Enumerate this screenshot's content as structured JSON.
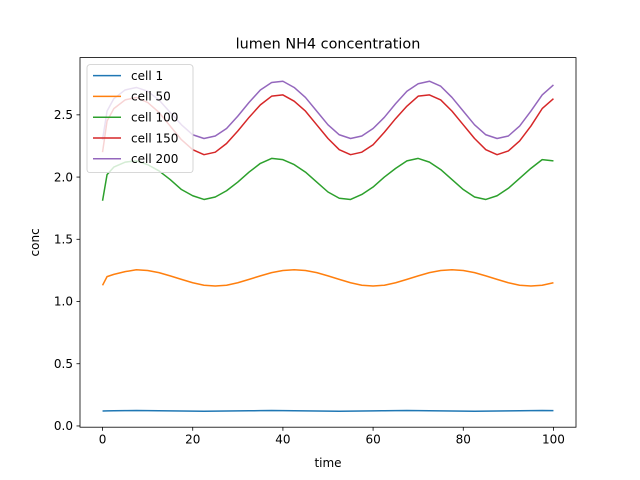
{
  "chart_data": {
    "type": "line",
    "title": "lumen NH4 concentration",
    "xlabel": "time",
    "ylabel": "conc",
    "xlim": [
      -5,
      105
    ],
    "ylim": [
      -0.01,
      2.96
    ],
    "xticks": [
      0,
      20,
      40,
      60,
      80,
      100
    ],
    "yticks": [
      0.0,
      0.5,
      1.0,
      1.5,
      2.0,
      2.5
    ],
    "xtick_labels": [
      "0",
      "20",
      "40",
      "60",
      "80",
      "100"
    ],
    "ytick_labels": [
      "0.0",
      "0.5",
      "1.0",
      "1.5",
      "2.0",
      "2.5"
    ],
    "grid": false,
    "legend_position": "top-left",
    "x": [
      0,
      1,
      2.5,
      5,
      7.5,
      10,
      12.5,
      15,
      17.5,
      20,
      22.5,
      25,
      27.5,
      30,
      32.5,
      35,
      37.5,
      40,
      42.5,
      45,
      47.5,
      50,
      52.5,
      55,
      57.5,
      60,
      62.5,
      65,
      67.5,
      70,
      72.5,
      75,
      77.5,
      80,
      82.5,
      85,
      87.5,
      90,
      92.5,
      95,
      97.5,
      100
    ],
    "series": [
      {
        "name": "cell 1",
        "color": "#1f77b4",
        "values": [
          0.12,
          0.121,
          0.122,
          0.123,
          0.124,
          0.123,
          0.122,
          0.121,
          0.12,
          0.119,
          0.118,
          0.119,
          0.12,
          0.121,
          0.122,
          0.123,
          0.124,
          0.123,
          0.122,
          0.121,
          0.12,
          0.119,
          0.118,
          0.119,
          0.12,
          0.121,
          0.122,
          0.123,
          0.124,
          0.123,
          0.122,
          0.121,
          0.12,
          0.119,
          0.118,
          0.119,
          0.12,
          0.121,
          0.122,
          0.123,
          0.124,
          0.123
        ]
      },
      {
        "name": "cell 50",
        "color": "#ff7f0e",
        "values": [
          1.13,
          1.2,
          1.218,
          1.24,
          1.255,
          1.249,
          1.232,
          1.206,
          1.178,
          1.151,
          1.131,
          1.125,
          1.131,
          1.151,
          1.178,
          1.206,
          1.232,
          1.249,
          1.255,
          1.249,
          1.232,
          1.206,
          1.178,
          1.151,
          1.131,
          1.125,
          1.131,
          1.151,
          1.178,
          1.206,
          1.232,
          1.249,
          1.255,
          1.249,
          1.232,
          1.206,
          1.178,
          1.151,
          1.131,
          1.125,
          1.131,
          1.151
        ]
      },
      {
        "name": "cell 100",
        "color": "#2ca02c",
        "values": [
          1.81,
          2.02,
          2.08,
          2.12,
          2.13,
          2.1,
          2.05,
          1.98,
          1.9,
          1.85,
          1.82,
          1.84,
          1.89,
          1.96,
          2.04,
          2.11,
          2.15,
          2.14,
          2.1,
          2.04,
          1.96,
          1.88,
          1.83,
          1.82,
          1.86,
          1.92,
          2.0,
          2.07,
          2.13,
          2.15,
          2.12,
          2.06,
          1.98,
          1.9,
          1.84,
          1.82,
          1.85,
          1.91,
          1.99,
          2.07,
          2.14,
          2.13
        ]
      },
      {
        "name": "cell 150",
        "color": "#d62728",
        "values": [
          2.2,
          2.45,
          2.55,
          2.62,
          2.64,
          2.6,
          2.52,
          2.41,
          2.3,
          2.22,
          2.18,
          2.2,
          2.27,
          2.37,
          2.48,
          2.58,
          2.65,
          2.66,
          2.61,
          2.53,
          2.42,
          2.31,
          2.22,
          2.18,
          2.2,
          2.26,
          2.36,
          2.47,
          2.57,
          2.65,
          2.66,
          2.62,
          2.53,
          2.42,
          2.31,
          2.22,
          2.18,
          2.21,
          2.29,
          2.41,
          2.55,
          2.63
        ]
      },
      {
        "name": "cell 200",
        "color": "#9467bd",
        "values": [
          2.3,
          2.53,
          2.63,
          2.7,
          2.72,
          2.69,
          2.62,
          2.52,
          2.42,
          2.34,
          2.31,
          2.33,
          2.39,
          2.49,
          2.6,
          2.7,
          2.76,
          2.77,
          2.72,
          2.64,
          2.53,
          2.42,
          2.34,
          2.31,
          2.33,
          2.39,
          2.48,
          2.59,
          2.69,
          2.75,
          2.77,
          2.73,
          2.64,
          2.53,
          2.42,
          2.34,
          2.31,
          2.33,
          2.41,
          2.53,
          2.66,
          2.74
        ]
      }
    ]
  }
}
